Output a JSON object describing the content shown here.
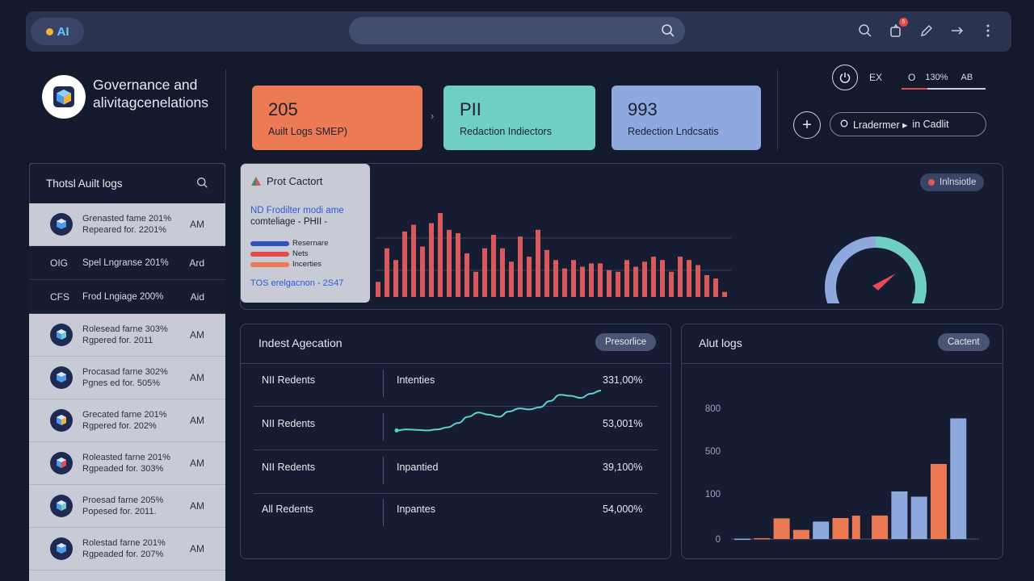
{
  "topbar": {
    "logo_text": "AI",
    "search_placeholder": "",
    "icons": [
      "search-icon",
      "notification-icon",
      "edit-icon",
      "arrow-right-icon",
      "more-icon"
    ],
    "notification_count": "5"
  },
  "brand": {
    "title_line1": "Governance and",
    "title_line2": "alivitagcenelations"
  },
  "kpis": [
    {
      "value": "205",
      "label": "Auilt Logs SMEP)",
      "color": "#ec7a54"
    },
    {
      "value": "PII",
      "label": "Redaction Indiectors",
      "color": "#6fcfc5"
    },
    {
      "value": "993",
      "label": "Redection Lndcsatis",
      "color": "#8ea9de"
    }
  ],
  "controls": {
    "label_ex": "EX",
    "label_o": "O",
    "zoom": "130%",
    "label_ab": "AB",
    "pill_label": "Lradermer ▸",
    "pill_label2": "in Cadlit"
  },
  "audit_list": {
    "title": "Thotsl Auilt logs",
    "items": [
      {
        "line1": "Grenasted fame 201%",
        "line2": "Repeared for. 2201%",
        "time": "AM",
        "style": "light"
      },
      {
        "code": "OIG",
        "text": "Spel Lngranse 201%",
        "time": "Ard",
        "style": "dark"
      },
      {
        "code": "CFS",
        "text": "Frod Lngiage 200%",
        "time": "Aid",
        "style": "dark"
      },
      {
        "line1": "Rolesead farne 303%",
        "line2": "Rgpered for. 2011",
        "time": "AM",
        "style": "light"
      },
      {
        "line1": "Procasad farne 302%",
        "line2": "Pgnes ed for. 505%",
        "time": "AM",
        "style": "light"
      },
      {
        "line1": "Grecated farne 201%",
        "line2": "Rgpered for. 202%",
        "time": "AM",
        "style": "light"
      },
      {
        "line1": "Roleasted farne 201%",
        "line2": "Rgpeaded for. 303%",
        "time": "AM",
        "style": "light"
      },
      {
        "line1": "Proesad farne 205%",
        "line2": "Popesed for. 2011.",
        "time": "AM",
        "style": "light"
      },
      {
        "line1": "Rolestad farne 201%",
        "line2": "Rgpeaded for. 207%",
        "time": "AM",
        "style": "light"
      }
    ]
  },
  "top_chart": {
    "popup_title": "Prot Cactort",
    "popup_desc1": "ND Frodilter modi ame",
    "popup_desc2": "comteliage - PHII -",
    "legend": [
      {
        "name": "Resernare",
        "color": "#2c54b8"
      },
      {
        "name": "Nets",
        "color": "#e34a4a"
      },
      {
        "name": "Incerties",
        "color": "#ec7a54"
      }
    ],
    "popup_footer": "TOS erelgacnon - 2S47",
    "badge": "Inlnsiotle",
    "gauge_value": 0.72
  },
  "chart_data": [
    {
      "type": "bar",
      "values": [
        18,
        58,
        44,
        78,
        86,
        60,
        88,
        100,
        80,
        76,
        52,
        30,
        58,
        74,
        58,
        42,
        72,
        48,
        80,
        56,
        44,
        34,
        44,
        36,
        40,
        40,
        32,
        30,
        44,
        36,
        42,
        48,
        44,
        30,
        48,
        44,
        38,
        26,
        22,
        6
      ],
      "color": "#d95a5a"
    },
    {
      "type": "line",
      "y": [
        4,
        6,
        5,
        4,
        6,
        10,
        18,
        30,
        38,
        34,
        30,
        40,
        46,
        44,
        48,
        60,
        72,
        70,
        66,
        74,
        80
      ],
      "color": "#5cd3c8"
    },
    {
      "type": "bar",
      "title": "Alut logs",
      "y_ticks": [
        "0",
        "100",
        "500",
        "800"
      ],
      "bars": [
        {
          "value": 2,
          "color": "#8ea9de"
        },
        {
          "value": 5,
          "color": "#ec7a54"
        },
        {
          "value": 122,
          "color": "#ec7a54"
        },
        {
          "value": 54,
          "color": "#ec7a54"
        },
        {
          "value": 103,
          "color": "#8ea9de"
        },
        {
          "value": 124,
          "color": "#ec7a54"
        },
        {
          "value": 138,
          "color": "#ec7a54"
        },
        {
          "value": 139,
          "color": "#ec7a54"
        },
        {
          "value": 281,
          "color": "#8ea9de"
        },
        {
          "value": 250,
          "color": "#8ea9de"
        },
        {
          "value": 443,
          "color": "#ec7a54"
        },
        {
          "value": 712,
          "color": "#8ea9de"
        }
      ]
    }
  ],
  "aggregation": {
    "title": "Indest Agecation",
    "badge": "Presorlice",
    "rows": [
      {
        "name": "NII Redents",
        "mid": "Intenties",
        "value": "331,00%"
      },
      {
        "name": "NII Redents",
        "mid": "",
        "value": "53,001%"
      },
      {
        "name": "NII Redents",
        "mid": "Inpantied",
        "value": "39,100%"
      },
      {
        "name": "All Redents",
        "mid": "Inpantes",
        "value": "54,000%"
      }
    ]
  },
  "alert_logs": {
    "title": "Alut logs",
    "badge": "Cactent"
  }
}
